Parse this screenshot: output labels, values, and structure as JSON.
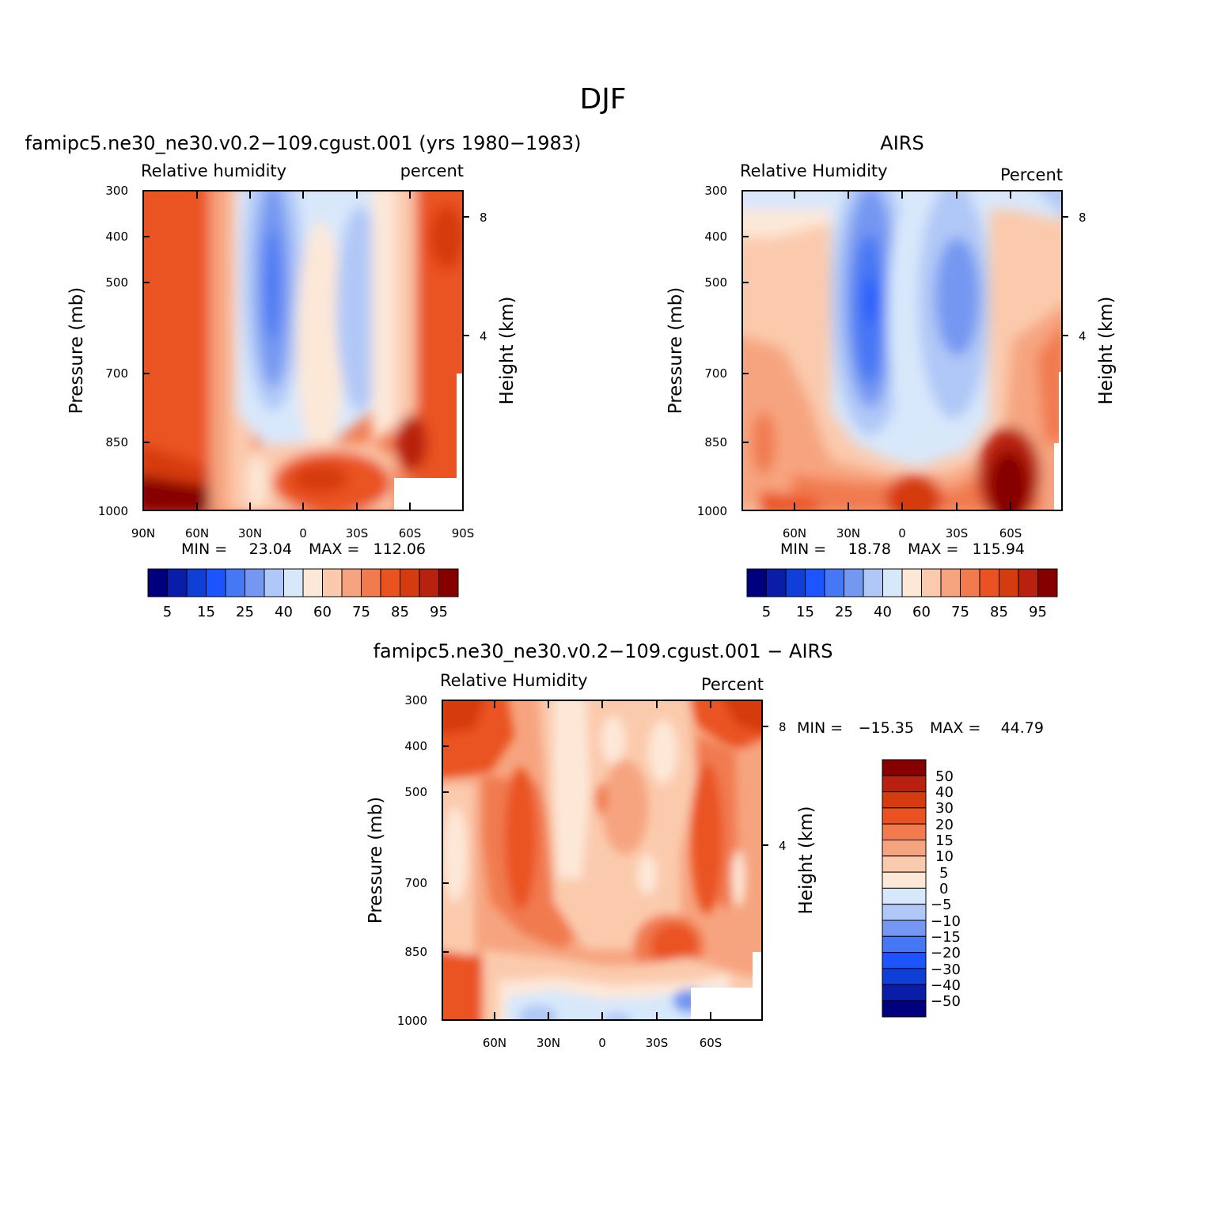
{
  "figure": {
    "title": "DJF"
  },
  "colors": {
    "rh": [
      "#00007f",
      "#0a1da8",
      "#0f3fd6",
      "#1c54ff",
      "#4677f5",
      "#7497f1",
      "#b0c8f7",
      "#d8e8fb",
      "#fde8d8",
      "#fbcaad",
      "#f6a47f",
      "#f17a4f",
      "#ea5222",
      "#d63b10",
      "#b82010",
      "#870000"
    ],
    "diff": [
      "#00007f",
      "#0a1da8",
      "#0f3fd6",
      "#1c54ff",
      "#4677f5",
      "#7497f1",
      "#b0c8f7",
      "#d8e8fb",
      "#fde8d8",
      "#fbcaad",
      "#f6a47f",
      "#f17a4f",
      "#ea5222",
      "#d63b10",
      "#b82010",
      "#870000"
    ]
  },
  "chart_data": [
    {
      "type": "heatmap",
      "name": "model",
      "title": "famipc5.ne30_ne30.v0.2−109.cgust.001 (yrs 1980−1983)",
      "left_string": "Relative humidity",
      "right_string": "percent",
      "ylabel": "Pressure (mb)",
      "y2label": "Height (km)",
      "xticks": [
        "90N",
        "60N",
        "30N",
        "0",
        "30S",
        "60S",
        "90S"
      ],
      "yticks": [
        "300",
        "400",
        "500",
        "700",
        "850",
        "1000"
      ],
      "y2ticks": [
        "8",
        "4"
      ],
      "min_label": "MIN =",
      "min_value": "23.04",
      "max_label": "MAX =",
      "max_value": "112.06",
      "colorbar_labels": [
        "5",
        "15",
        "25",
        "40",
        "60",
        "75",
        "85",
        "95"
      ],
      "colorbar_levels": [
        5,
        10,
        15,
        20,
        25,
        30,
        40,
        50,
        60,
        65,
        75,
        80,
        85,
        90,
        95
      ]
    },
    {
      "type": "heatmap",
      "name": "obs",
      "title": "AIRS",
      "left_string": "Relative Humidity",
      "right_string": "Percent",
      "ylabel": "Pressure (mb)",
      "y2label": "Height (km)",
      "xticks": [
        "60N",
        "30N",
        "0",
        "30S",
        "60S"
      ],
      "yticks": [
        "300",
        "400",
        "500",
        "700",
        "850",
        "1000"
      ],
      "y2ticks": [
        "8",
        "4"
      ],
      "min_label": "MIN =",
      "min_value": "18.78",
      "max_label": "MAX =",
      "max_value": "115.94",
      "colorbar_labels": [
        "5",
        "15",
        "25",
        "40",
        "60",
        "75",
        "85",
        "95"
      ],
      "colorbar_levels": [
        5,
        10,
        15,
        20,
        25,
        30,
        40,
        50,
        60,
        65,
        75,
        80,
        85,
        90,
        95
      ]
    },
    {
      "type": "heatmap",
      "name": "diff",
      "title": "famipc5.ne30_ne30.v0.2−109.cgust.001 − AIRS",
      "left_string": "Relative Humidity",
      "right_string": "Percent",
      "ylabel": "Pressure (mb)",
      "y2label": "Height (km)",
      "xticks": [
        "60N",
        "30N",
        "0",
        "30S",
        "60S"
      ],
      "yticks": [
        "300",
        "400",
        "500",
        "700",
        "850",
        "1000"
      ],
      "y2ticks": [
        "8",
        "4"
      ],
      "min_label": "MIN =",
      "min_value": "−15.35",
      "max_label": "MAX =",
      "max_value": "44.79",
      "colorbar_labels": [
        "50",
        "40",
        "30",
        "20",
        "15",
        "10",
        "5",
        "0",
        "−5",
        "−10",
        "−15",
        "−20",
        "−30",
        "−40",
        "−50"
      ],
      "colorbar_levels": [
        50,
        40,
        30,
        20,
        15,
        10,
        5,
        0,
        -5,
        -10,
        -15,
        -20,
        -30,
        -40,
        -50
      ]
    }
  ]
}
